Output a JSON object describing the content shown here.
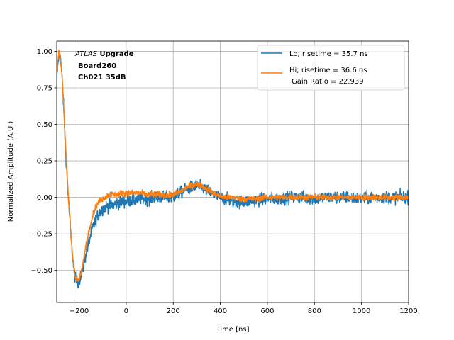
{
  "chart_data": {
    "type": "line",
    "xlabel": "Time [ns]",
    "ylabel": "Normalized Amplitude (A.U.)",
    "xlim": [
      -295,
      1200
    ],
    "ylim": [
      -0.72,
      1.07
    ],
    "xticks": [
      -200,
      0,
      200,
      400,
      600,
      800,
      1000,
      1200
    ],
    "yticks": [
      -0.5,
      -0.25,
      0.0,
      0.25,
      0.5,
      0.75,
      1.0
    ],
    "xtick_labels": [
      "−200",
      "0",
      "200",
      "400",
      "600",
      "800",
      "1000",
      "1200"
    ],
    "ytick_labels": [
      "−0.50",
      "−0.25",
      "0.00",
      "0.25",
      "0.50",
      "0.75",
      "1.00"
    ],
    "grid": true,
    "legend_position": "top-right",
    "annotation": {
      "line1_italic": "ATLAS",
      "line1_bold": " Upgrade",
      "line2": "Board260",
      "line3": "Ch021 35dB"
    },
    "series": [
      {
        "name": "Lo; risetime = 35.7 ns",
        "color": "#1f77b4",
        "x": [
          -295,
          -290,
          -285,
          -280,
          -275,
          -270,
          -265,
          -260,
          -255,
          -250,
          -245,
          -240,
          -235,
          -230,
          -225,
          -220,
          -215,
          -210,
          -205,
          -200,
          -195,
          -190,
          -185,
          -180,
          -175,
          -170,
          -165,
          -160,
          -150,
          -140,
          -130,
          -120,
          -110,
          -100,
          -90,
          -80,
          -70,
          -60,
          -50,
          -40,
          -30,
          -20,
          -10,
          0,
          20,
          40,
          60,
          80,
          100,
          120,
          140,
          160,
          180,
          200,
          220,
          240,
          260,
          280,
          300,
          320,
          340,
          360,
          380,
          400,
          420,
          440,
          460,
          480,
          500,
          550,
          600,
          650,
          700,
          750,
          800,
          850,
          900,
          950,
          1000,
          1050,
          1100,
          1150,
          1200
        ],
        "y": [
          0.8,
          0.92,
          0.98,
          0.96,
          0.88,
          0.76,
          0.6,
          0.42,
          0.26,
          0.12,
          -0.02,
          -0.14,
          -0.26,
          -0.36,
          -0.45,
          -0.52,
          -0.56,
          -0.58,
          -0.58,
          -0.57,
          -0.55,
          -0.53,
          -0.5,
          -0.46,
          -0.42,
          -0.38,
          -0.35,
          -0.32,
          -0.25,
          -0.2,
          -0.16,
          -0.12,
          -0.1,
          -0.08,
          -0.07,
          -0.06,
          -0.06,
          -0.05,
          -0.05,
          -0.04,
          -0.04,
          -0.03,
          -0.03,
          -0.03,
          -0.02,
          -0.02,
          -0.01,
          -0.01,
          -0.01,
          0.0,
          0.0,
          0.0,
          0.0,
          0.0,
          0.02,
          0.04,
          0.06,
          0.07,
          0.08,
          0.07,
          0.05,
          0.03,
          0.01,
          0.0,
          -0.01,
          -0.02,
          -0.03,
          -0.03,
          -0.03,
          -0.02,
          -0.01,
          -0.01,
          0.0,
          0.0,
          -0.01,
          0.0,
          0.0,
          0.0,
          -0.01,
          0.0,
          0.0,
          0.0,
          0.0
        ],
        "noise": 0.03
      },
      {
        "name": "Hi; risetime = 36.6 ns",
        "name_line2": "Gain Ratio = 22.939",
        "color": "#ff7f0e",
        "x": [
          -295,
          -290,
          -285,
          -280,
          -275,
          -270,
          -265,
          -260,
          -255,
          -250,
          -245,
          -240,
          -235,
          -230,
          -225,
          -220,
          -215,
          -210,
          -205,
          -200,
          -195,
          -190,
          -185,
          -180,
          -175,
          -170,
          -165,
          -160,
          -150,
          -140,
          -130,
          -120,
          -110,
          -100,
          -90,
          -80,
          -70,
          -60,
          -50,
          -40,
          -30,
          -20,
          -10,
          0,
          20,
          40,
          60,
          80,
          100,
          120,
          140,
          160,
          180,
          200,
          220,
          240,
          260,
          280,
          300,
          320,
          340,
          360,
          380,
          400,
          420,
          440,
          460,
          480,
          500,
          550,
          600,
          650,
          700,
          750,
          800,
          850,
          900,
          950,
          1000,
          1050,
          1100,
          1150,
          1200
        ],
        "y": [
          0.86,
          0.95,
          0.99,
          0.97,
          0.89,
          0.77,
          0.61,
          0.43,
          0.27,
          0.13,
          -0.01,
          -0.13,
          -0.25,
          -0.35,
          -0.44,
          -0.51,
          -0.55,
          -0.57,
          -0.57,
          -0.56,
          -0.54,
          -0.51,
          -0.47,
          -0.42,
          -0.37,
          -0.32,
          -0.28,
          -0.24,
          -0.17,
          -0.11,
          -0.07,
          -0.04,
          -0.02,
          -0.01,
          0.0,
          0.01,
          0.02,
          0.02,
          0.02,
          0.02,
          0.02,
          0.03,
          0.03,
          0.03,
          0.03,
          0.03,
          0.03,
          0.02,
          0.02,
          0.02,
          0.02,
          0.02,
          0.01,
          0.02,
          0.03,
          0.05,
          0.07,
          0.08,
          0.09,
          0.08,
          0.06,
          0.04,
          0.02,
          0.01,
          0.0,
          0.0,
          0.0,
          -0.01,
          -0.01,
          -0.01,
          0.0,
          0.0,
          0.0,
          0.0,
          0.0,
          0.0,
          0.0,
          0.0,
          0.0,
          0.0,
          0.0,
          0.0,
          0.0
        ],
        "noise": 0.015
      }
    ]
  }
}
